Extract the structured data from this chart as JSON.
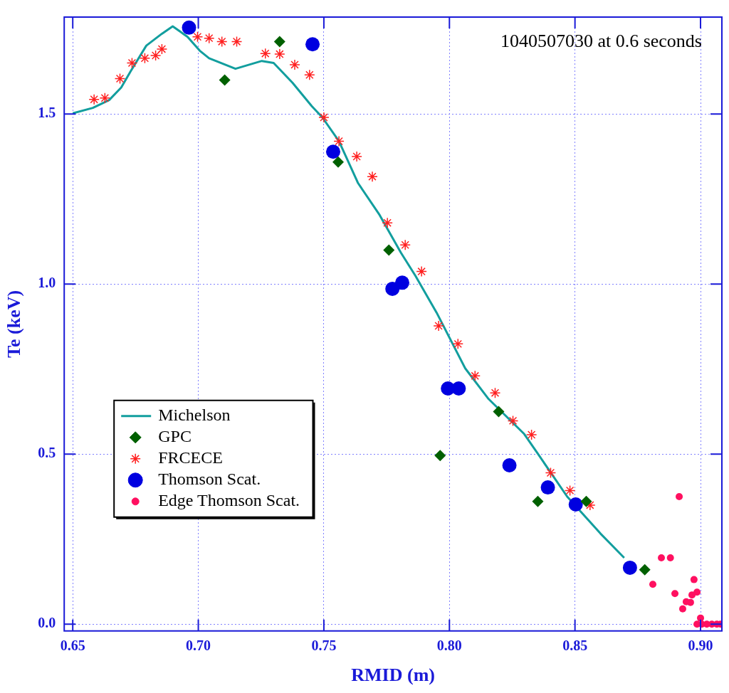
{
  "chart_data": {
    "type": "scatter",
    "xlabel": "RMID (m)",
    "ylabel": "Te (keV)",
    "annotations": [
      "1040507030 at 0.6 seconds"
    ],
    "xlim": [
      0.6466,
      0.9085
    ],
    "ylim": [
      -0.02,
      1.785
    ],
    "xticks": [
      0.65,
      {
        "value": 0.7,
        "label": "0.70"
      },
      0.75,
      {
        "value": 0.8,
        "label": "0.80"
      },
      0.85,
      {
        "value": 0.9,
        "label": "0.90"
      }
    ],
    "yticks": [
      {
        "value": 0,
        "label": "0.0"
      },
      0.5,
      {
        "value": 1,
        "label": "1.0"
      },
      1.5
    ],
    "grid": true,
    "legend": "bottom left",
    "series": [
      {
        "name": "Michelson",
        "type": "line",
        "marker": "none",
        "color": "#129e9e",
        "x": [
          0.65,
          0.658,
          0.6645,
          0.6693,
          0.673,
          0.6793,
          0.6855,
          0.6898,
          0.6957,
          0.7006,
          0.7043,
          0.7148,
          0.7253,
          0.73,
          0.7375,
          0.7452,
          0.7494,
          0.756,
          0.7636,
          0.7722,
          0.7807,
          0.7864,
          0.7949,
          0.8063,
          0.8156,
          0.8298,
          0.8355,
          0.8469,
          0.8602,
          0.8696
        ],
        "values": [
          1.502,
          1.518,
          1.541,
          1.578,
          1.625,
          1.701,
          1.736,
          1.758,
          1.727,
          1.686,
          1.664,
          1.633,
          1.656,
          1.65,
          1.592,
          1.523,
          1.49,
          1.42,
          1.297,
          1.203,
          1.092,
          1.025,
          0.916,
          0.752,
          0.662,
          0.559,
          0.498,
          0.375,
          0.266,
          0.195
        ]
      },
      {
        "name": "GPC",
        "marker": "diamond",
        "color": "#006000",
        "x": [
          0.7105,
          0.7324,
          0.7557,
          0.7759,
          0.7963,
          0.8196,
          0.8352,
          0.8545,
          0.8778
        ],
        "values": [
          1.6,
          1.713,
          1.359,
          1.1,
          0.496,
          0.625,
          0.361,
          0.361,
          0.16
        ]
      },
      {
        "name": "FRCECE",
        "marker": "cross",
        "color": "#ff2020",
        "x": [
          0.6585,
          0.6628,
          0.6688,
          0.6736,
          0.6787,
          0.683,
          0.6855,
          0.6997,
          0.7043,
          0.7094,
          0.7153,
          0.7267,
          0.7324,
          0.7384,
          0.7443,
          0.75,
          0.756,
          0.7631,
          0.7693,
          0.7753,
          0.7824,
          0.7889,
          0.7957,
          0.8034,
          0.8102,
          0.8182,
          0.8253,
          0.8327,
          0.8403,
          0.848,
          0.856
        ],
        "values": [
          1.543,
          1.547,
          1.604,
          1.65,
          1.664,
          1.672,
          1.691,
          1.727,
          1.723,
          1.713,
          1.713,
          1.678,
          1.676,
          1.645,
          1.615,
          1.49,
          1.42,
          1.375,
          1.316,
          1.18,
          1.115,
          1.037,
          0.877,
          0.824,
          0.73,
          0.68,
          0.598,
          0.557,
          0.445,
          0.393,
          0.35
        ]
      },
      {
        "name": "Thomson Scat.",
        "marker": "circle",
        "color": "#0000e0",
        "x": [
          0.6963,
          0.7455,
          0.7537,
          0.7773,
          0.7812,
          0.7994,
          0.8037,
          0.8239,
          0.8392,
          0.8503,
          0.8719
        ],
        "values": [
          1.754,
          1.705,
          1.389,
          0.986,
          1.004,
          0.693,
          0.693,
          0.467,
          0.402,
          0.352,
          0.166
        ]
      },
      {
        "name": "Edge Thomson Scat.",
        "marker": "circle",
        "color": "#ff1060",
        "x": [
          0.8915,
          0.8844,
          0.888,
          0.881,
          0.8898,
          0.8974,
          0.8986,
          0.8966,
          0.8943,
          0.896,
          0.8929,
          0.9,
          0.8986,
          0.9005,
          0.9025,
          0.9045,
          0.9065,
          0.908
        ],
        "values": [
          0.375,
          0.195,
          0.195,
          0.117,
          0.09,
          0.131,
          0.094,
          0.086,
          0.066,
          0.064,
          0.045,
          0.018,
          0,
          0,
          0,
          0,
          0,
          0
        ]
      }
    ]
  }
}
